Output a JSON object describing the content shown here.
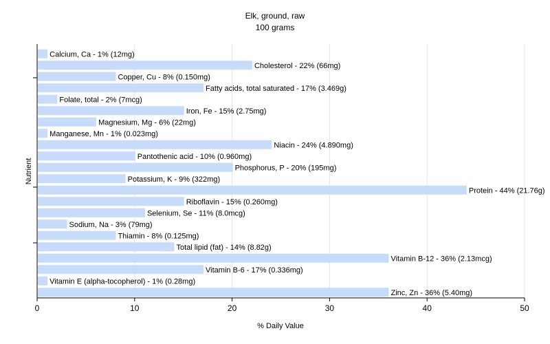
{
  "chart_data": {
    "type": "bar",
    "orientation": "horizontal",
    "title": "Elk, ground, raw",
    "subtitle": "100 grams",
    "xlabel": "% Daily Value",
    "ylabel": "Nutrient",
    "xlim": [
      0,
      50
    ],
    "xticks": [
      0,
      10,
      20,
      30,
      40,
      50
    ],
    "grid": true,
    "bar_color": "#c6dcfa",
    "categories": [
      "Calcium, Ca",
      "Cholesterol",
      "Copper, Cu",
      "Fatty acids, total saturated",
      "Folate, total",
      "Iron, Fe",
      "Magnesium, Mg",
      "Manganese, Mn",
      "Niacin",
      "Pantothenic acid",
      "Phosphorus, P",
      "Potassium, K",
      "Protein",
      "Riboflavin",
      "Selenium, Se",
      "Sodium, Na",
      "Thiamin",
      "Total lipid (fat)",
      "Vitamin B-12",
      "Vitamin B-6",
      "Vitamin E (alpha-tocopherol)",
      "Zinc, Zn"
    ],
    "values": [
      1,
      22,
      8,
      17,
      2,
      15,
      6,
      1,
      24,
      10,
      20,
      9,
      44,
      15,
      11,
      3,
      8,
      14,
      36,
      17,
      1,
      36
    ],
    "labels": [
      "Calcium, Ca - 1% (12mg)",
      "Cholesterol - 22% (66mg)",
      "Copper, Cu - 8% (0.150mg)",
      "Fatty acids, total saturated - 17% (3.469g)",
      "Folate, total - 2% (7mcg)",
      "Iron, Fe - 15% (2.75mg)",
      "Magnesium, Mg - 6% (22mg)",
      "Manganese, Mn - 1% (0.023mg)",
      "Niacin - 24% (4.890mg)",
      "Pantothenic acid - 10% (0.960mg)",
      "Phosphorus, P - 20% (195mg)",
      "Potassium, K - 9% (322mg)",
      "Protein - 44% (21.76g)",
      "Riboflavin - 15% (0.260mg)",
      "Selenium, Se - 11% (8.0mcg)",
      "Sodium, Na - 3% (79mg)",
      "Thiamin - 8% (0.125mg)",
      "Total lipid (fat) - 14% (8.82g)",
      "Vitamin B-12 - 36% (2.13mcg)",
      "Vitamin B-6 - 17% (0.336mg)",
      "Vitamin E (alpha-tocopherol) - 1% (0.28mg)",
      "Zinc, Zn - 36% (5.40mg)"
    ]
  }
}
